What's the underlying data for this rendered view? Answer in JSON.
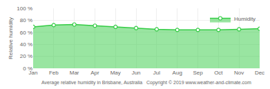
{
  "chart_data": {
    "type": "area",
    "categories": [
      "Jan",
      "Feb",
      "Mar",
      "Apr",
      "May",
      "Jun",
      "Jul",
      "Aug",
      "Sep",
      "Oct",
      "Nov",
      "Dec"
    ],
    "series": [
      {
        "name": "Humidity",
        "color": "#33cc44",
        "values": [
          69,
          72,
          73,
          71,
          69,
          67,
          65,
          64,
          64,
          64,
          65,
          66
        ]
      }
    ],
    "ylabel": "Relative humidity",
    "ylim": [
      0,
      100
    ],
    "yticks": [
      {
        "value": 0,
        "label": "0 %"
      },
      {
        "value": 20,
        "label": "20 %"
      },
      {
        "value": 40,
        "label": "40 %"
      },
      {
        "value": 60,
        "label": "60 %"
      },
      {
        "value": 80,
        "label": "80 %"
      },
      {
        "value": 100,
        "label": "100 %"
      }
    ],
    "grid": true,
    "legend": "top right",
    "marker": "circle",
    "annotations": [
      "Average relative humidity in Brisbane, Australia   Copyright © 2019 www.weather-and-climate.com"
    ]
  }
}
